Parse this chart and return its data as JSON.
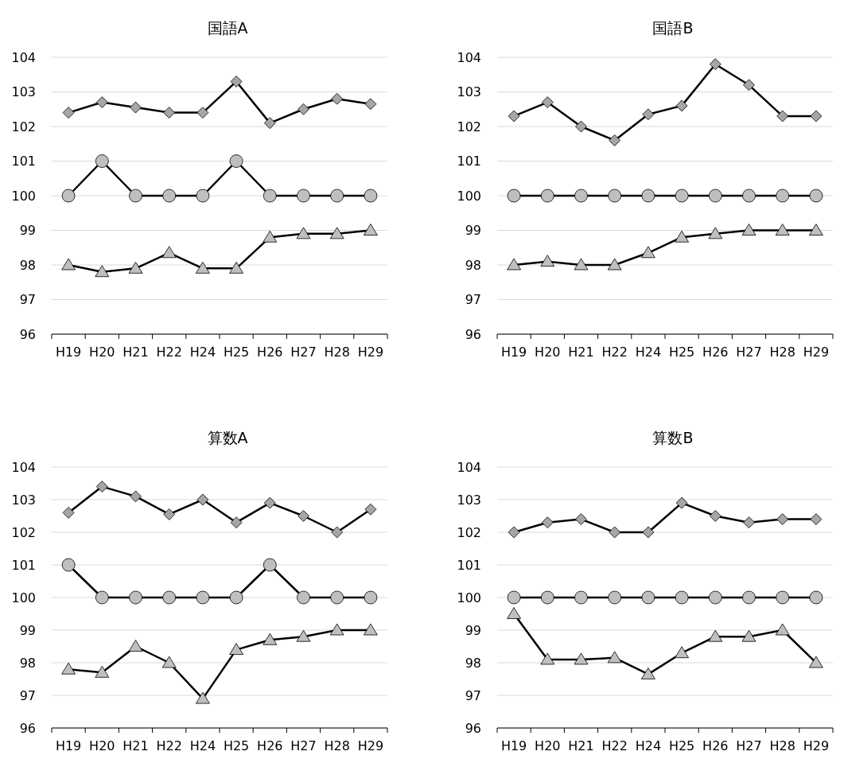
{
  "chart_data": [
    {
      "type": "line",
      "title": "国語A",
      "categories": [
        "H19",
        "H20",
        "H21",
        "H22",
        "H24",
        "H25",
        "H26",
        "H27",
        "H28",
        "H29"
      ],
      "ylim": [
        96,
        104
      ],
      "yticks": [
        96,
        97,
        98,
        99,
        100,
        101,
        102,
        103,
        104
      ],
      "grid": "y",
      "series": [
        {
          "color": "#000000",
          "marker": "diamond",
          "values": [
            102.4,
            102.7,
            102.55,
            102.4,
            102.4,
            103.3,
            102.1,
            102.5,
            102.8,
            102.65
          ]
        },
        {
          "color": "#000000",
          "marker": "circle",
          "values": [
            100,
            101,
            100,
            100,
            100,
            101,
            100,
            100,
            100,
            100
          ]
        },
        {
          "color": "#000000",
          "marker": "triangle",
          "values": [
            98.0,
            97.8,
            97.9,
            98.35,
            97.9,
            97.9,
            98.8,
            98.9,
            98.9,
            99.0
          ]
        }
      ]
    },
    {
      "type": "line",
      "title": "国語B",
      "categories": [
        "H19",
        "H20",
        "H21",
        "H22",
        "H24",
        "H25",
        "H26",
        "H27",
        "H28",
        "H29"
      ],
      "ylim": [
        96,
        104
      ],
      "yticks": [
        96,
        97,
        98,
        99,
        100,
        101,
        102,
        103,
        104
      ],
      "grid": "y",
      "series": [
        {
          "color": "#000000",
          "marker": "diamond",
          "values": [
            102.3,
            102.7,
            102.0,
            101.6,
            102.35,
            102.6,
            103.8,
            103.2,
            102.3,
            102.3
          ]
        },
        {
          "color": "#000000",
          "marker": "circle",
          "values": [
            100,
            100,
            100,
            100,
            100,
            100,
            100,
            100,
            100,
            100
          ]
        },
        {
          "color": "#000000",
          "marker": "triangle",
          "values": [
            98.0,
            98.1,
            98.0,
            98.0,
            98.35,
            98.8,
            98.9,
            99.0,
            99.0,
            99.0
          ]
        }
      ]
    },
    {
      "type": "line",
      "title": "算数A",
      "categories": [
        "H19",
        "H20",
        "H21",
        "H22",
        "H24",
        "H25",
        "H26",
        "H27",
        "H28",
        "H29"
      ],
      "ylim": [
        96,
        104
      ],
      "yticks": [
        96,
        97,
        98,
        99,
        100,
        101,
        102,
        103,
        104
      ],
      "grid": "y",
      "series": [
        {
          "color": "#000000",
          "marker": "diamond",
          "values": [
            102.6,
            103.4,
            103.1,
            102.55,
            103.0,
            102.3,
            102.9,
            102.5,
            102.0,
            102.7
          ]
        },
        {
          "color": "#000000",
          "marker": "circle",
          "values": [
            101,
            100,
            100,
            100,
            100,
            100,
            101,
            100,
            100,
            100
          ]
        },
        {
          "color": "#000000",
          "marker": "triangle",
          "values": [
            97.8,
            97.7,
            98.5,
            98.0,
            96.9,
            98.4,
            98.7,
            98.8,
            99.0,
            99.0
          ]
        }
      ]
    },
    {
      "type": "line",
      "title": "算数B",
      "categories": [
        "H19",
        "H20",
        "H21",
        "H22",
        "H24",
        "H25",
        "H26",
        "H27",
        "H28",
        "H29"
      ],
      "ylim": [
        96,
        104
      ],
      "yticks": [
        96,
        97,
        98,
        99,
        100,
        101,
        102,
        103,
        104
      ],
      "grid": "y",
      "series": [
        {
          "color": "#000000",
          "marker": "diamond",
          "values": [
            102.0,
            102.3,
            102.4,
            102.0,
            102.0,
            102.9,
            102.5,
            102.3,
            102.4,
            102.4
          ]
        },
        {
          "color": "#000000",
          "marker": "circle",
          "values": [
            100,
            100,
            100,
            100,
            100,
            100,
            100,
            100,
            100,
            100
          ]
        },
        {
          "color": "#000000",
          "marker": "triangle",
          "values": [
            99.5,
            98.1,
            98.1,
            98.15,
            97.65,
            98.3,
            98.8,
            98.8,
            99.0,
            98.0
          ]
        }
      ]
    }
  ]
}
